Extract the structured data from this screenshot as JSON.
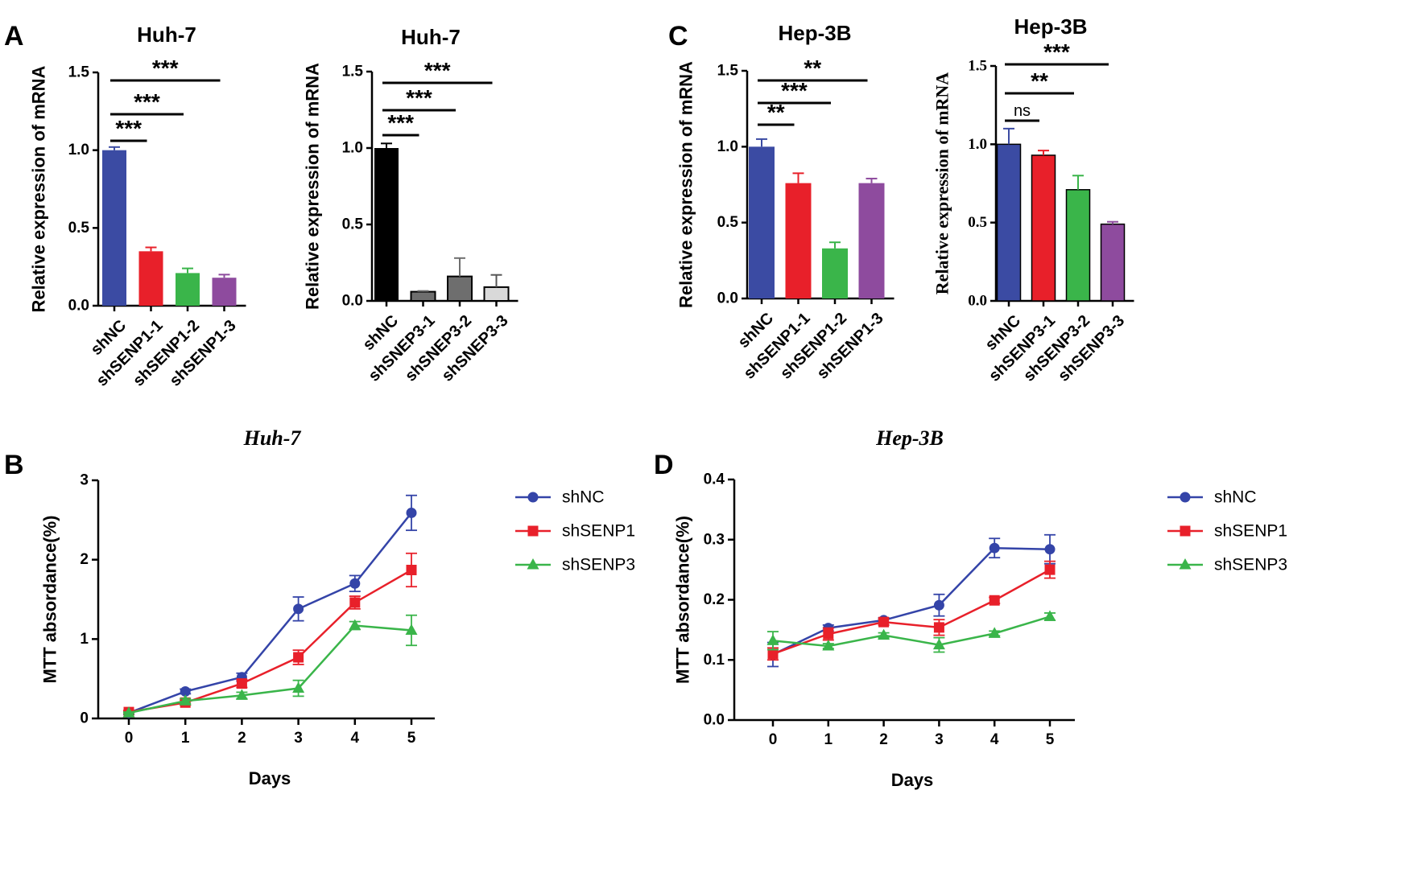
{
  "colors": {
    "blue": "#3B4BA3",
    "red": "#E8202A",
    "green": "#3AB54A",
    "purple": "#8E4B9E",
    "black": "#000000",
    "dark_gray": "#6E6E6E",
    "light_gray": "#D9D9D9",
    "line_blue": "#3444A8",
    "line_red": "#E8202A",
    "line_green": "#3AB54A"
  },
  "chart_data": [
    {
      "panel": "A",
      "type": "bar",
      "title": "Huh-7",
      "ylabel": "Relative expression of mRNA",
      "ylim": [
        0,
        1.5
      ],
      "yticks": [
        "0.0",
        "0.5",
        "1.0",
        "1.5"
      ],
      "categories": [
        "shNC",
        "shSENP1-1",
        "shSENP1-2",
        "shSENP1-3"
      ],
      "values": [
        1.0,
        0.35,
        0.21,
        0.18
      ],
      "errors": [
        0.02,
        0.025,
        0.03,
        0.02
      ],
      "bar_colors": [
        "blue",
        "red",
        "green",
        "purple"
      ],
      "significance": [
        {
          "from": 0,
          "to": 1,
          "label": "***"
        },
        {
          "from": 0,
          "to": 2,
          "label": "***"
        },
        {
          "from": 0,
          "to": 3,
          "label": "***"
        }
      ]
    },
    {
      "panel": "",
      "type": "bar",
      "title": "Huh-7",
      "ylabel": "Relative expression of mRNA",
      "ylim": [
        0,
        1.5
      ],
      "yticks": [
        "0.0",
        "0.5",
        "1.0",
        "1.5"
      ],
      "categories": [
        "shNC",
        "shSNEP3-1",
        "shSNEP3-2",
        "shSNEP3-3"
      ],
      "values": [
        1.0,
        0.06,
        0.16,
        0.09
      ],
      "errors": [
        0.03,
        0.005,
        0.12,
        0.08
      ],
      "bar_colors": [
        "black",
        "dark_gray",
        "dark_gray",
        "light_gray"
      ],
      "significance": [
        {
          "from": 0,
          "to": 1,
          "label": "***"
        },
        {
          "from": 0,
          "to": 2,
          "label": "***"
        },
        {
          "from": 0,
          "to": 3,
          "label": "***"
        }
      ]
    },
    {
      "panel": "C",
      "type": "bar",
      "title": "Hep-3B",
      "ylabel": "Relative expression of mRNA",
      "ylim": [
        0,
        1.5
      ],
      "yticks": [
        "0.0",
        "0.5",
        "1.0",
        "1.5"
      ],
      "categories": [
        "shNC",
        "shSENP1-1",
        "shSENP1-2",
        "shSENP1-3"
      ],
      "values": [
        1.0,
        0.76,
        0.33,
        0.76
      ],
      "errors": [
        0.05,
        0.065,
        0.04,
        0.03
      ],
      "bar_colors": [
        "blue",
        "red",
        "green",
        "purple"
      ],
      "significance": [
        {
          "from": 0,
          "to": 1,
          "label": "**"
        },
        {
          "from": 0,
          "to": 2,
          "label": "***"
        },
        {
          "from": 0,
          "to": 3,
          "label": "**"
        }
      ]
    },
    {
      "panel": "",
      "type": "bar",
      "title": "Hep-3B",
      "ylabel": "Relative expression of mRNA",
      "ylim": [
        0,
        1.5
      ],
      "yticks": [
        "0.0",
        "0.5",
        "1.0",
        "1.5"
      ],
      "categories": [
        "shNC",
        "shSENP3-1",
        "shSENP3-2",
        "shSENP3-3"
      ],
      "values": [
        1.0,
        0.93,
        0.71,
        0.49
      ],
      "errors": [
        0.1,
        0.03,
        0.09,
        0.015
      ],
      "bar_colors": [
        "blue",
        "red",
        "green",
        "purple"
      ],
      "significance": [
        {
          "from": 0,
          "to": 1,
          "label": "ns"
        },
        {
          "from": 0,
          "to": 2,
          "label": "**"
        },
        {
          "from": 0,
          "to": 3,
          "label": "***"
        }
      ]
    },
    {
      "panel": "B",
      "type": "line",
      "title": "Huh-7",
      "xlabel": "Days",
      "ylabel": "MTT absordance(%)",
      "x": [
        0,
        1,
        2,
        3,
        4,
        5
      ],
      "xlim": [
        -0.5,
        5.5
      ],
      "ylim": [
        0,
        3
      ],
      "yticks": [
        "0",
        "1",
        "2",
        "3"
      ],
      "series": [
        {
          "name": "shNC",
          "color": "line_blue",
          "marker": "circle",
          "values": [
            0.07,
            0.34,
            0.52,
            1.38,
            1.7,
            2.59
          ],
          "errors": [
            0.02,
            0.03,
            0.05,
            0.15,
            0.1,
            0.22
          ]
        },
        {
          "name": "shSENP1",
          "color": "line_red",
          "marker": "square",
          "values": [
            0.08,
            0.2,
            0.44,
            0.77,
            1.46,
            1.87
          ],
          "errors": [
            0.02,
            0.03,
            0.05,
            0.09,
            0.08,
            0.21
          ]
        },
        {
          "name": "shSENP3",
          "color": "line_green",
          "marker": "triangle",
          "values": [
            0.07,
            0.22,
            0.29,
            0.38,
            1.17,
            1.11
          ],
          "errors": [
            0.01,
            0.03,
            0.04,
            0.1,
            0.05,
            0.19
          ]
        }
      ]
    },
    {
      "panel": "D",
      "type": "line",
      "title": "Hep-3B",
      "xlabel": "Days",
      "ylabel": "MTT absordance(%)",
      "x": [
        0,
        1,
        2,
        3,
        4,
        5
      ],
      "xlim": [
        -0.5,
        5.5
      ],
      "ylim": [
        0,
        0.4
      ],
      "yticks": [
        "0.0",
        "0.1",
        "0.2",
        "0.3",
        "0.4"
      ],
      "series": [
        {
          "name": "shNC",
          "color": "line_blue",
          "marker": "circle",
          "values": [
            0.109,
            0.153,
            0.166,
            0.191,
            0.286,
            0.284
          ],
          "errors": [
            0.02,
            0.005,
            0.004,
            0.018,
            0.016,
            0.024
          ]
        },
        {
          "name": "shSENP1",
          "color": "line_red",
          "marker": "square",
          "values": [
            0.11,
            0.143,
            0.163,
            0.154,
            0.199,
            0.25
          ],
          "errors": [
            0.01,
            0.01,
            0.005,
            0.013,
            0.005,
            0.014
          ]
        },
        {
          "name": "shSENP3",
          "color": "line_green",
          "marker": "triangle",
          "values": [
            0.132,
            0.123,
            0.141,
            0.125,
            0.144,
            0.172
          ],
          "errors": [
            0.015,
            0.004,
            0.004,
            0.012,
            0.004,
            0.006
          ]
        }
      ]
    }
  ]
}
